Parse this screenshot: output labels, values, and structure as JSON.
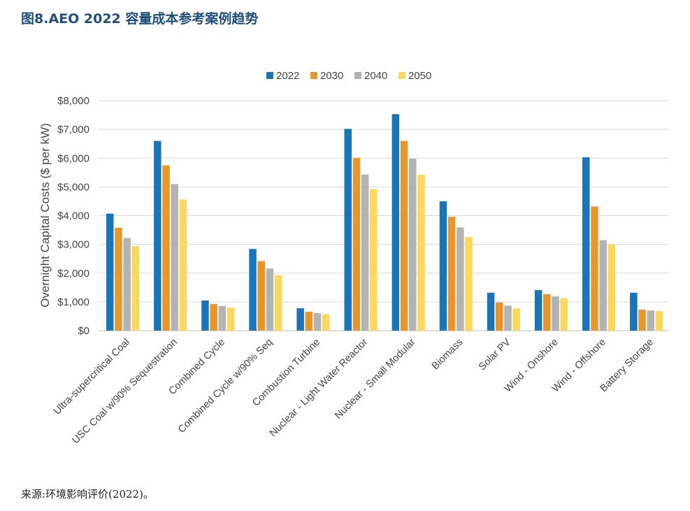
{
  "figure": {
    "title": "图8.AEO 2022 容量成本参考案例趋势",
    "source": "来源:环境影响评价(2022)。"
  },
  "colors": {
    "2022": "#1a75b8",
    "2030": "#e8962a",
    "2040": "#b3b3b3",
    "2050": "#fbd75b"
  },
  "chart_data": {
    "type": "bar",
    "title": "",
    "xlabel": "",
    "ylabel": "Overnight Capital Costs ($ per kW)",
    "ylim": [
      0,
      8000
    ],
    "yticks": [
      0,
      1000,
      2000,
      3000,
      4000,
      5000,
      6000,
      7000,
      8000
    ],
    "ytick_labels": [
      "$0",
      "$1,000",
      "$2,000",
      "$3,000",
      "$4,000",
      "$5,000",
      "$6,000",
      "$7,000",
      "$8,000"
    ],
    "grid": true,
    "legend_position": "top-center",
    "categories": [
      "Ultra-supercritical Coal",
      "USC Coal w/90% Sequestration",
      "Combined Cycle",
      "Combined Cycle w/90% Seq",
      "Combustion Turbine",
      "Nuclear - Light Water Reactor",
      "Nuclear - Small Modular",
      "Biomass",
      "Solar PV",
      "Wind - Onshore",
      "Wind - Offshore",
      "Battery Storage"
    ],
    "series": [
      {
        "name": "2022",
        "values": [
          4070,
          6600,
          1050,
          2840,
          780,
          7020,
          7530,
          4500,
          1320,
          1410,
          6030,
          1320
        ]
      },
      {
        "name": "2030",
        "values": [
          3580,
          5750,
          930,
          2420,
          660,
          6010,
          6600,
          3960,
          980,
          1270,
          4320,
          730
        ]
      },
      {
        "name": "2040",
        "values": [
          3220,
          5100,
          860,
          2160,
          610,
          5430,
          5980,
          3590,
          870,
          1190,
          3150,
          700
        ]
      },
      {
        "name": "2050",
        "values": [
          2940,
          4560,
          800,
          1930,
          570,
          4930,
          5420,
          3260,
          770,
          1130,
          3000,
          680
        ]
      }
    ]
  }
}
